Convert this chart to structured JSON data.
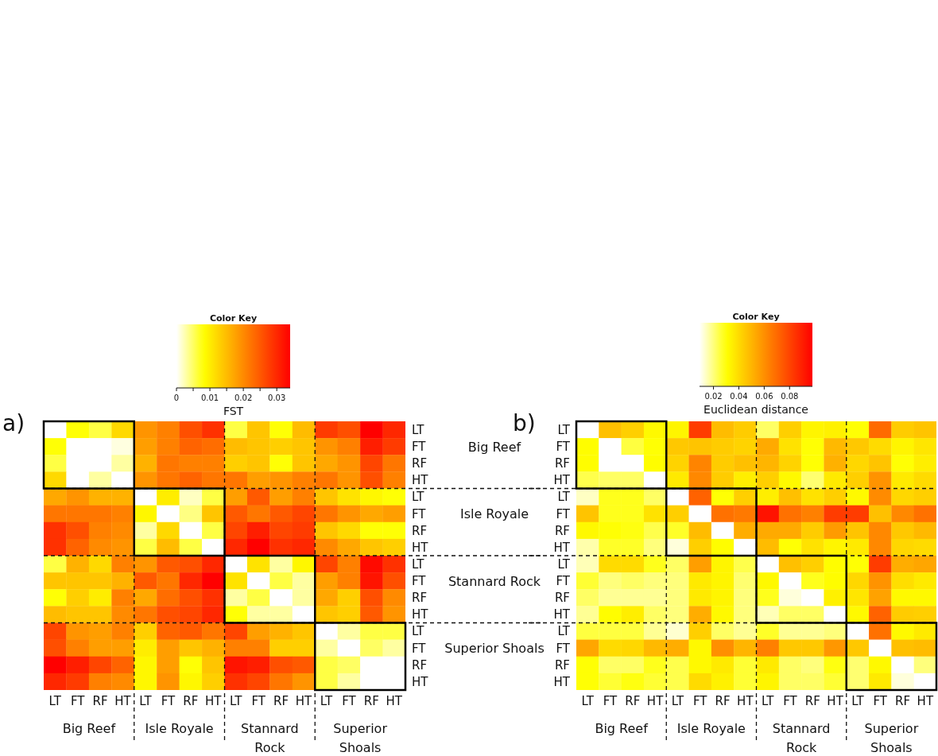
{
  "chart_data": [
    {
      "type": "heatmap",
      "title": "a)",
      "clabel": "FST",
      "clim": [
        0,
        0.034
      ],
      "cticks": [
        0,
        {
          "value": 0.005,
          "label": null
        },
        0.01,
        {
          "value": 0.015,
          "label": null
        },
        0.02,
        {
          "value": 0.025,
          "label": null
        },
        0.03
      ],
      "annotations": [
        "Color Key",
        "Big Reef",
        "Isle Royale",
        "Stannard Rock",
        "Superior Shoals"
      ],
      "categories": [
        "LT",
        "FT",
        "RF",
        "HT",
        "LT",
        "FT",
        "RF",
        "HT",
        "LT",
        "FT",
        "RF",
        "HT",
        "LT",
        "FT",
        "RF",
        "HT"
      ],
      "y_categories": [
        "LT",
        "FT",
        "RF",
        "HT",
        "LT",
        "FT",
        "RF",
        "HT",
        "LT",
        "FT",
        "RF",
        "HT",
        "LT",
        "FT",
        "RF",
        "HT"
      ],
      "y2_categories": [
        null,
        "Big Reef",
        null,
        null,
        null,
        "Isle Royale",
        null,
        null,
        null,
        "Stannard Rock",
        null,
        null,
        null,
        "Superior Shoals",
        null,
        null
      ],
      "cells": [
        [
          0,
          0.008,
          0.006,
          0.012,
          0.019,
          0.021,
          0.026,
          0.029,
          0.006,
          0.014,
          0.008,
          0.015,
          0.028,
          0.026,
          0.034,
          0.03
        ],
        [
          0.008,
          0,
          0,
          0.001,
          0.018,
          0.021,
          0.024,
          0.023,
          0.015,
          0.014,
          0.013,
          0.014,
          0.019,
          0.021,
          0.031,
          0.028
        ],
        [
          0.006,
          0,
          0,
          0.003,
          0.016,
          0.022,
          0.021,
          0.021,
          0.013,
          0.014,
          0.008,
          0.014,
          0.017,
          0.019,
          0.027,
          0.022
        ],
        [
          0.012,
          0,
          0.003,
          0,
          0.019,
          0.022,
          0.024,
          0.022,
          0.022,
          0.018,
          0.019,
          0.021,
          0.022,
          0.019,
          0.026,
          0.021
        ],
        [
          0.017,
          0.019,
          0.016,
          0.016,
          0,
          0.01,
          0.002,
          0.006,
          0.018,
          0.025,
          0.018,
          0.021,
          0.014,
          0.011,
          0.009,
          0.008
        ],
        [
          0.022,
          0.022,
          0.022,
          0.021,
          0.009,
          0,
          0.004,
          0.014,
          0.025,
          0.022,
          0.025,
          0.027,
          0.022,
          0.019,
          0.017,
          0.018
        ],
        [
          0.029,
          0.026,
          0.021,
          0.02,
          0.003,
          0.012,
          0,
          0.006,
          0.027,
          0.031,
          0.027,
          0.028,
          0.014,
          0.012,
          0.008,
          0.008
        ],
        [
          0.029,
          0.024,
          0.02,
          0.019,
          0.006,
          0.015,
          0.006,
          0,
          0.03,
          0.034,
          0.029,
          0.03,
          0.02,
          0.017,
          0.014,
          0.013
        ],
        [
          0.006,
          0.016,
          0.012,
          0.021,
          0.019,
          0.025,
          0.026,
          0.03,
          0,
          0.011,
          0.003,
          0.009,
          0.027,
          0.021,
          0.033,
          0.029
        ],
        [
          0.014,
          0.014,
          0.014,
          0.016,
          0.025,
          0.022,
          0.03,
          0.034,
          0.011,
          0,
          0.006,
          0.003,
          0.018,
          0.021,
          0.032,
          0.026
        ],
        [
          0.008,
          0.013,
          0.01,
          0.021,
          0.017,
          0.023,
          0.026,
          0.029,
          0.003,
          0.006,
          0,
          0.003,
          0.017,
          0.013,
          0.026,
          0.02
        ],
        [
          0.015,
          0.014,
          0.014,
          0.02,
          0.022,
          0.026,
          0.027,
          0.03,
          0.008,
          0.003,
          0.003,
          0,
          0.014,
          0.013,
          0.025,
          0.019
        ],
        [
          0.027,
          0.019,
          0.018,
          0.021,
          0.013,
          0.024,
          0.025,
          0.022,
          0.027,
          0.018,
          0.016,
          0.014,
          0,
          0.003,
          0.006,
          0.006
        ],
        [
          0.026,
          0.021,
          0.018,
          0.018,
          0.01,
          0.018,
          0.014,
          0.016,
          0.021,
          0.021,
          0.013,
          0.013,
          0.003,
          0,
          0.005,
          0.003
        ],
        [
          0.034,
          0.031,
          0.027,
          0.024,
          0.009,
          0.018,
          0.008,
          0.014,
          0.032,
          0.031,
          0.026,
          0.025,
          0.006,
          0.005,
          0,
          0
        ],
        [
          0.03,
          0.028,
          0.021,
          0.02,
          0.009,
          0.019,
          0.009,
          0.013,
          0.029,
          0.027,
          0.022,
          0.019,
          0.006,
          0.003,
          0,
          0
        ]
      ]
    },
    {
      "type": "heatmap",
      "title": "b)",
      "clabel": "Euclidean distance",
      "clim": [
        0.009,
        0.098
      ],
      "cticks": [
        0.02,
        0.04,
        0.06,
        0.08
      ],
      "annotations": [
        "Color Key",
        "Big Reef",
        "Isle Royale",
        "Stannard Rock",
        "Superior Shoals"
      ],
      "categories": [
        "LT",
        "FT",
        "RF",
        "HT",
        "LT",
        "FT",
        "RF",
        "HT",
        "LT",
        "FT",
        "RF",
        "HT",
        "LT",
        "FT",
        "RF",
        "HT"
      ],
      "y_categories": [
        "LT",
        "FT",
        "RF",
        "HT",
        "LT",
        "FT",
        "RF",
        "HT",
        "LT",
        "FT",
        "RF",
        "HT",
        "LT",
        "FT",
        "RF",
        "HT"
      ],
      "cells": [
        [
          0.009,
          0.047,
          0.043,
          0.032,
          0.033,
          0.082,
          0.048,
          0.044,
          0.022,
          0.043,
          0.033,
          0.034,
          0.03,
          0.07,
          0.044,
          0.046
        ],
        [
          0.031,
          0.009,
          0.025,
          0.03,
          0.045,
          0.046,
          0.044,
          0.042,
          0.053,
          0.038,
          0.03,
          0.049,
          0.045,
          0.04,
          0.033,
          0.037
        ],
        [
          0.031,
          0.009,
          0.009,
          0.031,
          0.042,
          0.063,
          0.044,
          0.047,
          0.05,
          0.042,
          0.03,
          0.051,
          0.041,
          0.046,
          0.03,
          0.035
        ],
        [
          0.024,
          0.022,
          0.022,
          0.009,
          0.036,
          0.062,
          0.044,
          0.035,
          0.043,
          0.032,
          0.021,
          0.036,
          0.043,
          0.059,
          0.036,
          0.04
        ],
        [
          0.014,
          0.028,
          0.028,
          0.022,
          0.009,
          0.072,
          0.03,
          0.043,
          0.035,
          0.047,
          0.038,
          0.043,
          0.032,
          0.061,
          0.041,
          0.043
        ],
        [
          0.046,
          0.028,
          0.028,
          0.038,
          0.043,
          0.009,
          0.068,
          0.066,
          0.093,
          0.068,
          0.064,
          0.082,
          0.082,
          0.047,
          0.062,
          0.068
        ],
        [
          0.032,
          0.03,
          0.029,
          0.024,
          0.027,
          0.048,
          0.009,
          0.052,
          0.053,
          0.053,
          0.044,
          0.057,
          0.046,
          0.062,
          0.045,
          0.049
        ],
        [
          0.016,
          0.027,
          0.027,
          0.02,
          0.012,
          0.043,
          0.031,
          0.009,
          0.048,
          0.03,
          0.038,
          0.033,
          0.036,
          0.062,
          0.041,
          0.04
        ],
        [
          0.015,
          0.04,
          0.04,
          0.028,
          0.022,
          0.056,
          0.033,
          0.024,
          0.009,
          0.047,
          0.043,
          0.031,
          0.03,
          0.082,
          0.052,
          0.054
        ],
        [
          0.026,
          0.02,
          0.022,
          0.02,
          0.02,
          0.036,
          0.033,
          0.021,
          0.032,
          0.009,
          0.028,
          0.031,
          0.041,
          0.059,
          0.039,
          0.036
        ],
        [
          0.022,
          0.018,
          0.018,
          0.018,
          0.02,
          0.036,
          0.033,
          0.02,
          0.028,
          0.012,
          0.009,
          0.034,
          0.037,
          0.055,
          0.032,
          0.032
        ],
        [
          0.018,
          0.031,
          0.035,
          0.022,
          0.02,
          0.052,
          0.032,
          0.02,
          0.015,
          0.022,
          0.022,
          0.009,
          0.032,
          0.072,
          0.044,
          0.043
        ],
        [
          0.025,
          0.025,
          0.025,
          0.018,
          0.013,
          0.043,
          0.022,
          0.018,
          0.027,
          0.018,
          0.018,
          0.02,
          0.009,
          0.068,
          0.032,
          0.036
        ],
        [
          0.054,
          0.04,
          0.041,
          0.049,
          0.052,
          0.032,
          0.06,
          0.05,
          0.064,
          0.045,
          0.045,
          0.058,
          0.045,
          0.009,
          0.047,
          0.048
        ],
        [
          0.03,
          0.022,
          0.022,
          0.028,
          0.024,
          0.032,
          0.036,
          0.026,
          0.036,
          0.022,
          0.02,
          0.029,
          0.021,
          0.032,
          0.009,
          0.02
        ],
        [
          0.03,
          0.026,
          0.029,
          0.026,
          0.024,
          0.04,
          0.034,
          0.026,
          0.033,
          0.022,
          0.022,
          0.026,
          0.021,
          0.036,
          0.012,
          0.009
        ]
      ]
    }
  ]
}
